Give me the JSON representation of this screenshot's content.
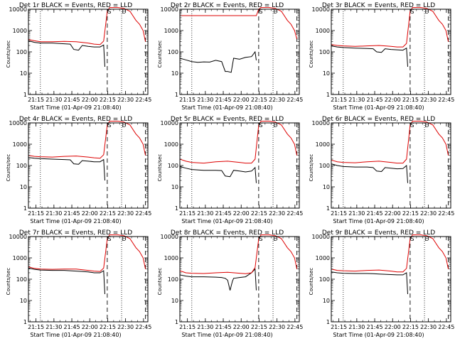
{
  "figure": {
    "xlabel": "Start Time (01-Apr-09 21:08:40)",
    "ylabel": "Counts/sec",
    "x_ticks": [
      "21:15",
      "21:30",
      "21:45",
      "22:00",
      "22:15",
      "22:30",
      "22:45"
    ],
    "y_ticks": [
      "1",
      "10",
      "100",
      "1000",
      "10000"
    ],
    "marker_labels": [
      "S",
      "E"
    ],
    "colors": {
      "events": "#000000",
      "lld": "#dd0000",
      "frame": "#000000"
    }
  },
  "chart_data": [
    {
      "type": "line",
      "title": "Det 1r BLACK = Events, RED = LLD",
      "xlabel": "Start Time (01-Apr-09 21:08:40)",
      "ylabel": "Counts/sec",
      "x_unit": "minutes after 21:08:40",
      "xlim": [
        0,
        100
      ],
      "ylim": [
        1,
        10000
      ],
      "y_scale": "log",
      "grid": false,
      "dotted_lines_x": [
        10,
        78
      ],
      "dashed_lines_x": [
        66,
        98
      ],
      "series": [
        {
          "name": "Events",
          "x": [
            0,
            5,
            10,
            20,
            30,
            35,
            38,
            42,
            45,
            50,
            55,
            60,
            63,
            64
          ],
          "y": [
            330,
            280,
            260,
            260,
            240,
            230,
            130,
            120,
            200,
            180,
            170,
            170,
            210,
            20
          ]
        },
        {
          "name": "LLD",
          "x": [
            0,
            5,
            10,
            20,
            30,
            40,
            50,
            55,
            60,
            63,
            66,
            68,
            70,
            75,
            80,
            85,
            90,
            93,
            96,
            98
          ],
          "y": [
            380,
            330,
            300,
            300,
            310,
            300,
            260,
            230,
            220,
            320,
            8000,
            12000,
            12000,
            12000,
            11000,
            8000,
            3000,
            2000,
            1000,
            300
          ]
        }
      ]
    },
    {
      "type": "line",
      "title": "Det 2r BLACK = Events, RED = LLD",
      "xlabel": "Start Time (01-Apr-09 21:08:40)",
      "ylabel": "Counts/sec",
      "x_unit": "minutes after 21:08:40",
      "xlim": [
        0,
        100
      ],
      "ylim": [
        1,
        10000
      ],
      "y_scale": "log",
      "grid": false,
      "dotted_lines_x": [
        10,
        78
      ],
      "dashed_lines_x": [
        66,
        98
      ],
      "series": [
        {
          "name": "Events",
          "x": [
            0,
            5,
            10,
            15,
            20,
            25,
            30,
            35,
            38,
            40,
            43,
            45,
            50,
            55,
            60,
            63,
            64
          ],
          "y": [
            50,
            42,
            35,
            32,
            34,
            33,
            40,
            35,
            12,
            12,
            11,
            50,
            45,
            55,
            60,
            100,
            40
          ]
        },
        {
          "name": "LLD",
          "x": [
            0,
            10,
            20,
            30,
            40,
            50,
            60,
            64,
            66,
            68,
            70,
            75,
            80,
            85,
            90,
            93,
            96,
            98
          ],
          "y": [
            5000,
            5000,
            5000,
            5000,
            5000,
            5000,
            5000,
            5000,
            10000,
            12000,
            12000,
            12000,
            11000,
            8000,
            3000,
            2000,
            1000,
            400
          ]
        }
      ]
    },
    {
      "type": "line",
      "title": "Det 3r BLACK = Events, RED = LLD",
      "xlabel": "Start Time (01-Apr-09 21:08:40)",
      "ylabel": "Counts/sec",
      "x_unit": "minutes after 21:08:40",
      "xlim": [
        0,
        100
      ],
      "ylim": [
        1,
        10000
      ],
      "y_scale": "log",
      "grid": false,
      "dotted_lines_x": [
        10,
        78
      ],
      "dashed_lines_x": [
        66,
        98
      ],
      "series": [
        {
          "name": "Events",
          "x": [
            0,
            5,
            10,
            20,
            30,
            35,
            38,
            42,
            45,
            50,
            55,
            60,
            63,
            64
          ],
          "y": [
            190,
            170,
            160,
            150,
            145,
            140,
            100,
            95,
            140,
            130,
            125,
            120,
            150,
            20
          ]
        },
        {
          "name": "LLD",
          "x": [
            0,
            5,
            10,
            20,
            30,
            40,
            50,
            55,
            60,
            63,
            66,
            68,
            70,
            75,
            80,
            85,
            90,
            93,
            96,
            98
          ],
          "y": [
            220,
            200,
            190,
            180,
            190,
            200,
            180,
            170,
            170,
            250,
            8000,
            12000,
            12000,
            12000,
            11000,
            8000,
            3000,
            2000,
            1000,
            300
          ]
        }
      ]
    },
    {
      "type": "line",
      "title": "Det 4r BLACK = Events, RED = LLD",
      "xlabel": "Start Time (01-Apr-09 21:08:40)",
      "ylabel": "Counts/sec",
      "x_unit": "minutes after 21:08:40",
      "xlim": [
        0,
        100
      ],
      "ylim": [
        1,
        10000
      ],
      "y_scale": "log",
      "grid": false,
      "dotted_lines_x": [
        10,
        78
      ],
      "dashed_lines_x": [
        66,
        98
      ],
      "series": [
        {
          "name": "Events",
          "x": [
            0,
            5,
            10,
            20,
            30,
            35,
            38,
            42,
            45,
            50,
            55,
            60,
            63,
            64
          ],
          "y": [
            240,
            220,
            210,
            200,
            190,
            185,
            120,
            115,
            170,
            160,
            150,
            150,
            190,
            20
          ]
        },
        {
          "name": "LLD",
          "x": [
            0,
            5,
            10,
            20,
            30,
            40,
            50,
            55,
            60,
            63,
            66,
            68,
            70,
            75,
            80,
            85,
            90,
            93,
            96,
            98
          ],
          "y": [
            300,
            270,
            260,
            250,
            270,
            280,
            250,
            230,
            220,
            320,
            8000,
            12000,
            12000,
            12000,
            11000,
            8000,
            3000,
            2000,
            1000,
            300
          ]
        }
      ]
    },
    {
      "type": "line",
      "title": "Det 5r BLACK = Events, RED = LLD",
      "xlabel": "Start Time (01-Apr-09 21:08:40)",
      "ylabel": "Counts/sec",
      "x_unit": "minutes after 21:08:40",
      "xlim": [
        0,
        100
      ],
      "ylim": [
        1,
        10000
      ],
      "y_scale": "log",
      "grid": false,
      "dotted_lines_x": [
        10,
        78
      ],
      "dashed_lines_x": [
        66,
        98
      ],
      "series": [
        {
          "name": "Events",
          "x": [
            0,
            5,
            10,
            20,
            30,
            35,
            38,
            42,
            45,
            50,
            55,
            60,
            63,
            64
          ],
          "y": [
            90,
            75,
            65,
            60,
            60,
            58,
            32,
            30,
            60,
            55,
            50,
            55,
            80,
            15
          ]
        },
        {
          "name": "LLD",
          "x": [
            0,
            5,
            10,
            20,
            30,
            40,
            50,
            55,
            60,
            63,
            66,
            68,
            70,
            75,
            80,
            85,
            90,
            93,
            96,
            98
          ],
          "y": [
            200,
            160,
            140,
            130,
            150,
            160,
            140,
            130,
            130,
            200,
            8000,
            12000,
            12000,
            12000,
            11000,
            8000,
            3000,
            2000,
            1000,
            300
          ]
        }
      ]
    },
    {
      "type": "line",
      "title": "Det 6r BLACK = Events, RED = LLD",
      "xlabel": "Start Time (01-Apr-09 21:08:40)",
      "ylabel": "Counts/sec",
      "x_unit": "minutes after 21:08:40",
      "xlim": [
        0,
        100
      ],
      "ylim": [
        1,
        10000
      ],
      "y_scale": "log",
      "grid": false,
      "dotted_lines_x": [
        10,
        78
      ],
      "dashed_lines_x": [
        66,
        98
      ],
      "series": [
        {
          "name": "Events",
          "x": [
            0,
            5,
            10,
            20,
            30,
            35,
            38,
            42,
            45,
            50,
            55,
            60,
            63,
            64
          ],
          "y": [
            120,
            100,
            90,
            85,
            85,
            80,
            55,
            52,
            80,
            75,
            70,
            72,
            100,
            15
          ]
        },
        {
          "name": "LLD",
          "x": [
            0,
            5,
            10,
            20,
            30,
            40,
            50,
            55,
            60,
            63,
            66,
            68,
            70,
            75,
            80,
            85,
            90,
            93,
            96,
            98
          ],
          "y": [
            180,
            150,
            140,
            135,
            150,
            160,
            140,
            130,
            130,
            200,
            8000,
            12000,
            12000,
            12000,
            11000,
            8000,
            3000,
            2000,
            1000,
            300
          ]
        }
      ]
    },
    {
      "type": "line",
      "title": "Det 7r BLACK = Events, RED = LLD",
      "xlabel": "Start Time (01-Apr-09 21:08:40)",
      "ylabel": "Counts/sec",
      "x_unit": "minutes after 21:08:40",
      "xlim": [
        0,
        100
      ],
      "ylim": [
        1,
        10000
      ],
      "y_scale": "log",
      "grid": false,
      "dotted_lines_x": [
        10,
        78
      ],
      "dashed_lines_x": [
        66,
        98
      ],
      "series": [
        {
          "name": "Events",
          "x": [
            0,
            5,
            10,
            20,
            30,
            35,
            40,
            45,
            50,
            55,
            60,
            63,
            64
          ],
          "y": [
            330,
            290,
            270,
            260,
            260,
            250,
            240,
            230,
            220,
            200,
            200,
            250,
            20
          ]
        },
        {
          "name": "LLD",
          "x": [
            0,
            5,
            10,
            20,
            30,
            40,
            50,
            55,
            60,
            63,
            66,
            68,
            70,
            75,
            80,
            85,
            90,
            93,
            96,
            98
          ],
          "y": [
            380,
            320,
            300,
            290,
            300,
            300,
            260,
            240,
            230,
            330,
            8000,
            12000,
            12000,
            12000,
            11000,
            8000,
            3000,
            2000,
            1000,
            300
          ]
        }
      ]
    },
    {
      "type": "line",
      "title": "Det 8r BLACK = Events, RED = LLD",
      "xlabel": "Start Time (01-Apr-09 21:08:40)",
      "ylabel": "Counts/sec",
      "x_unit": "minutes after 21:08:40",
      "xlim": [
        0,
        100
      ],
      "ylim": [
        1,
        10000
      ],
      "y_scale": "log",
      "grid": false,
      "dotted_lines_x": [
        10,
        78
      ],
      "dashed_lines_x": [
        66,
        98
      ],
      "series": [
        {
          "name": "Events",
          "x": [
            0,
            5,
            10,
            20,
            30,
            35,
            38,
            40,
            42,
            44,
            45,
            50,
            55,
            60,
            63,
            64
          ],
          "y": [
            160,
            140,
            130,
            130,
            125,
            120,
            110,
            90,
            30,
            80,
            110,
            120,
            130,
            200,
            300,
            30
          ]
        },
        {
          "name": "LLD",
          "x": [
            0,
            5,
            10,
            20,
            30,
            40,
            50,
            55,
            60,
            63,
            66,
            68,
            70,
            75,
            80,
            85,
            90,
            93,
            96,
            98
          ],
          "y": [
            250,
            200,
            190,
            185,
            200,
            210,
            190,
            180,
            200,
            350,
            8000,
            12000,
            12000,
            12000,
            11000,
            8000,
            3000,
            2000,
            1000,
            300
          ]
        }
      ]
    },
    {
      "type": "line",
      "title": "Det 9r BLACK = Events, RED = LLD",
      "xlabel": "Start Time (01-Apr-09 21:08:40)",
      "ylabel": "Counts/sec",
      "x_unit": "minutes after 21:08:40",
      "xlim": [
        0,
        100
      ],
      "ylim": [
        1,
        10000
      ],
      "y_scale": "log",
      "grid": false,
      "dotted_lines_x": [
        10,
        78
      ],
      "dashed_lines_x": [
        66,
        98
      ],
      "series": [
        {
          "name": "Events",
          "x": [
            0,
            5,
            10,
            20,
            30,
            35,
            40,
            45,
            50,
            55,
            60,
            63,
            64
          ],
          "y": [
            220,
            200,
            190,
            185,
            185,
            180,
            175,
            170,
            165,
            160,
            160,
            200,
            20
          ]
        },
        {
          "name": "LLD",
          "x": [
            0,
            5,
            10,
            20,
            30,
            40,
            50,
            55,
            60,
            63,
            66,
            68,
            70,
            75,
            80,
            85,
            90,
            93,
            96,
            98
          ],
          "y": [
            300,
            260,
            250,
            240,
            260,
            270,
            240,
            220,
            220,
            320,
            8000,
            12000,
            12000,
            12000,
            11000,
            8000,
            3000,
            2000,
            1000,
            300
          ]
        }
      ]
    }
  ]
}
